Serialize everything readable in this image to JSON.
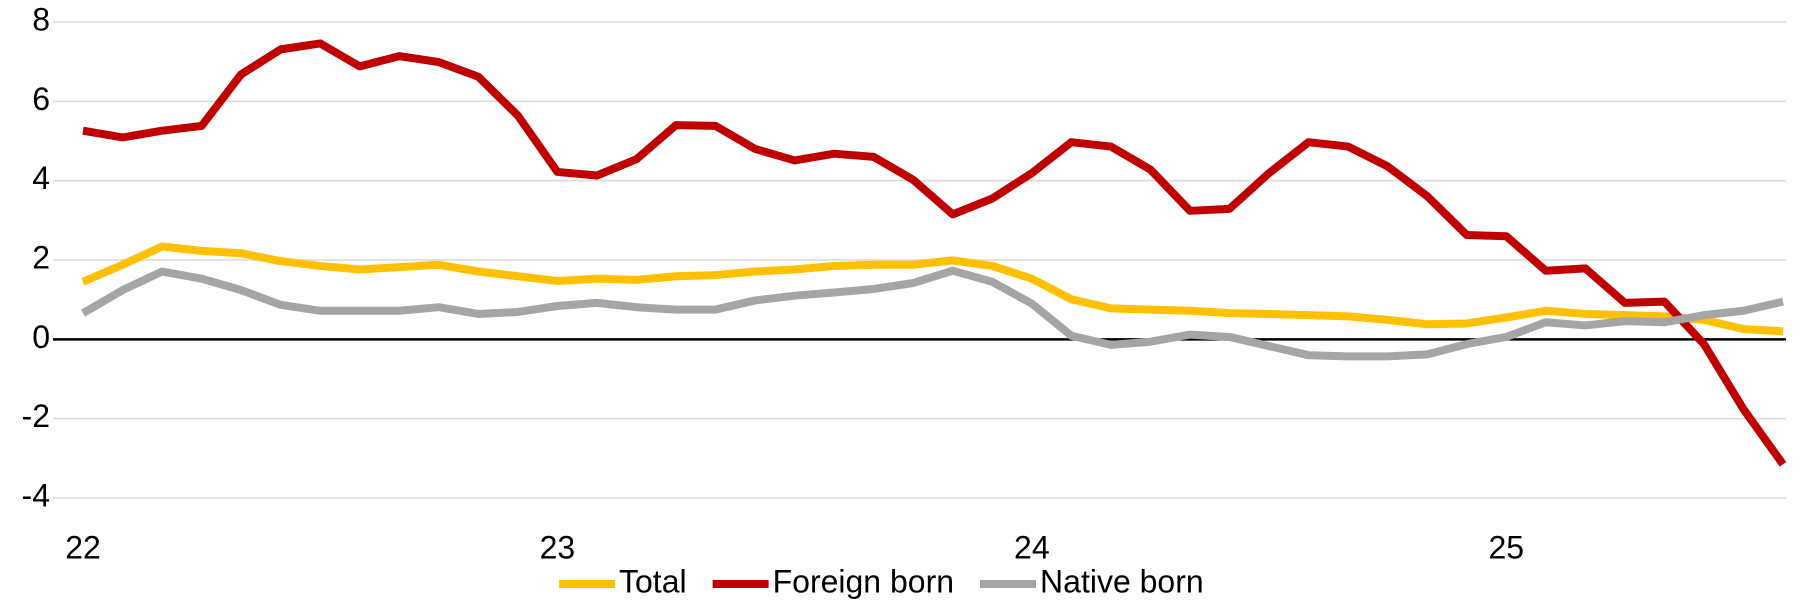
{
  "chart_data": {
    "type": "line",
    "categories": [
      "22",
      null,
      null,
      null,
      null,
      null,
      null,
      null,
      null,
      null,
      null,
      null,
      "23",
      null,
      null,
      null,
      null,
      null,
      null,
      null,
      null,
      null,
      null,
      null,
      "24",
      null,
      null,
      null,
      null,
      null,
      null,
      null,
      null,
      null,
      null,
      null,
      "25",
      null,
      null,
      null,
      null,
      null,
      null,
      null
    ],
    "series": [
      {
        "name": "Total",
        "color": "#ffc000",
        "values": [
          1.45,
          1.88,
          2.34,
          2.23,
          2.17,
          1.97,
          1.85,
          1.76,
          1.82,
          1.88,
          1.71,
          1.59,
          1.47,
          1.53,
          1.5,
          1.59,
          1.62,
          1.71,
          1.76,
          1.85,
          1.88,
          1.88,
          1.99,
          1.85,
          1.53,
          1.01,
          0.78,
          0.75,
          0.72,
          0.66,
          0.64,
          0.61,
          0.58,
          0.49,
          0.38,
          0.4,
          0.55,
          0.72,
          0.64,
          0.61,
          0.58,
          0.49,
          0.26,
          0.2
        ]
      },
      {
        "name": "Foreign born",
        "color": "#c00000",
        "values": [
          5.26,
          5.09,
          5.26,
          5.38,
          6.68,
          7.31,
          7.46,
          6.88,
          7.14,
          6.99,
          6.62,
          5.64,
          4.22,
          4.13,
          4.54,
          5.4,
          5.38,
          4.8,
          4.51,
          4.68,
          4.6,
          4.02,
          3.15,
          3.55,
          4.19,
          4.97,
          4.86,
          4.28,
          3.24,
          3.29,
          4.19,
          4.97,
          4.86,
          4.36,
          3.61,
          2.63,
          2.6,
          1.73,
          1.79,
          0.92,
          0.95,
          -0.12,
          -1.76,
          -3.15
        ]
      },
      {
        "name": "Native born",
        "color": "#a5a5a5",
        "values": [
          0.66,
          1.24,
          1.71,
          1.53,
          1.24,
          0.87,
          0.72,
          0.72,
          0.72,
          0.81,
          0.64,
          0.69,
          0.84,
          0.92,
          0.81,
          0.75,
          0.75,
          0.98,
          1.1,
          1.18,
          1.27,
          1.42,
          1.73,
          1.45,
          0.9,
          0.09,
          -0.14,
          -0.06,
          0.12,
          0.06,
          -0.17,
          -0.4,
          -0.43,
          -0.43,
          -0.38,
          -0.12,
          0.06,
          0.43,
          0.35,
          0.46,
          0.43,
          0.61,
          0.72,
          0.95
        ]
      }
    ],
    "ylim": [
      -4,
      8
    ],
    "yticks": [
      -4,
      -2,
      0,
      2,
      4,
      6,
      8
    ],
    "grid": true,
    "legend": "bottom"
  }
}
